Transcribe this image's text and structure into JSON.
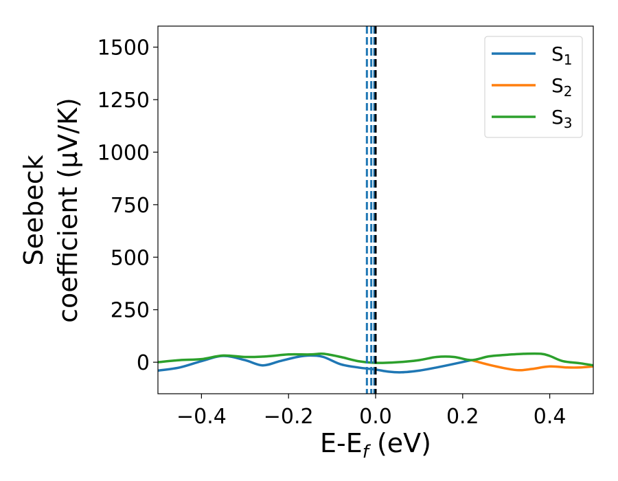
{
  "chart_data": {
    "type": "line",
    "xlabel": "E-E_f (eV)",
    "ylabel_line1": "Seebeck",
    "ylabel_line2": "coefficient  (μV/K)",
    "xlim": [
      -0.5,
      0.5
    ],
    "ylim": [
      -150,
      1600
    ],
    "xticks": [
      -0.4,
      -0.2,
      0.0,
      0.2,
      0.4
    ],
    "xtick_labels": [
      "−0.4",
      "−0.2",
      "0.0",
      "0.2",
      "0.4"
    ],
    "yticks": [
      0,
      250,
      500,
      750,
      1000,
      1250,
      1500
    ],
    "ytick_labels": [
      "0",
      "250",
      "500",
      "750",
      "1000",
      "1250",
      "1500"
    ],
    "grid": false,
    "legend_position": "top-right",
    "vlines": [
      {
        "x": -0.02,
        "color": "#1f77b4",
        "style": "dashed"
      },
      {
        "x": -0.01,
        "color": "#1f77b4",
        "style": "dashed"
      },
      {
        "x": -0.003,
        "color": "#1f77b4",
        "style": "dashed"
      },
      {
        "x": 0.0,
        "color": "#000000",
        "style": "dashed"
      }
    ],
    "series": [
      {
        "name": "S",
        "subscript": "1",
        "color": "#1f77b4",
        "x": [
          -0.5,
          -0.45,
          -0.4,
          -0.35,
          -0.3,
          -0.26,
          -0.22,
          -0.18,
          -0.15,
          -0.12,
          -0.08,
          -0.04,
          0.0,
          0.03,
          0.06,
          0.1,
          0.14,
          0.18,
          0.22
        ],
        "y": [
          -40,
          -25,
          5,
          30,
          10,
          -15,
          5,
          25,
          32,
          25,
          -10,
          -25,
          -35,
          -45,
          -48,
          -40,
          -25,
          -8,
          10
        ]
      },
      {
        "name": "S",
        "subscript": "2",
        "color": "#ff7f0e",
        "x": [
          0.22,
          0.26,
          0.3,
          0.33,
          0.36,
          0.4,
          0.44,
          0.47,
          0.5
        ],
        "y": [
          10,
          -12,
          -30,
          -38,
          -32,
          -20,
          -25,
          -25,
          -20
        ]
      },
      {
        "name": "S",
        "subscript": "3",
        "color": "#2ca02c",
        "x": [
          -0.5,
          -0.45,
          -0.4,
          -0.35,
          -0.3,
          -0.25,
          -0.2,
          -0.15,
          -0.12,
          -0.08,
          -0.04,
          0.0,
          0.05,
          0.1,
          0.14,
          0.18,
          0.22,
          0.26,
          0.3,
          0.34,
          0.38,
          0.4,
          0.43,
          0.47,
          0.5
        ],
        "y": [
          0,
          10,
          15,
          32,
          25,
          28,
          37,
          37,
          40,
          25,
          5,
          -3,
          0,
          10,
          25,
          25,
          10,
          28,
          35,
          40,
          40,
          30,
          5,
          -5,
          -15
        ]
      }
    ]
  }
}
